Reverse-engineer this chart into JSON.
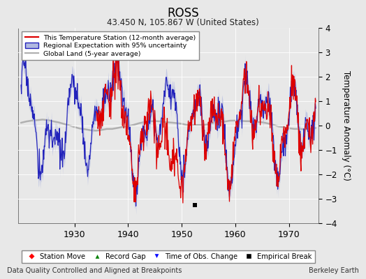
{
  "title": "ROSS",
  "subtitle": "43.450 N, 105.867 W (United States)",
  "ylabel": "Temperature Anomaly (°C)",
  "xlabel_note": "Data Quality Controlled and Aligned at Breakpoints",
  "credit": "Berkeley Earth",
  "year_start": 1920,
  "year_end": 1975,
  "ylim": [
    -4,
    4
  ],
  "yticks": [
    -4,
    -3,
    -2,
    -1,
    0,
    1,
    2,
    3,
    4
  ],
  "xticks": [
    1930,
    1940,
    1950,
    1960,
    1970
  ],
  "bg_color": "#e8e8e8",
  "plot_bg": "#e8e8e8",
  "red_color": "#dd0000",
  "blue_color": "#2222bb",
  "blue_fill": "#b0b8e0",
  "gray_color": "#b0b0b0",
  "empirical_break_year": 1952.5,
  "empirical_break_value": -3.25,
  "red_start_year": 1934.0,
  "seed": 17
}
